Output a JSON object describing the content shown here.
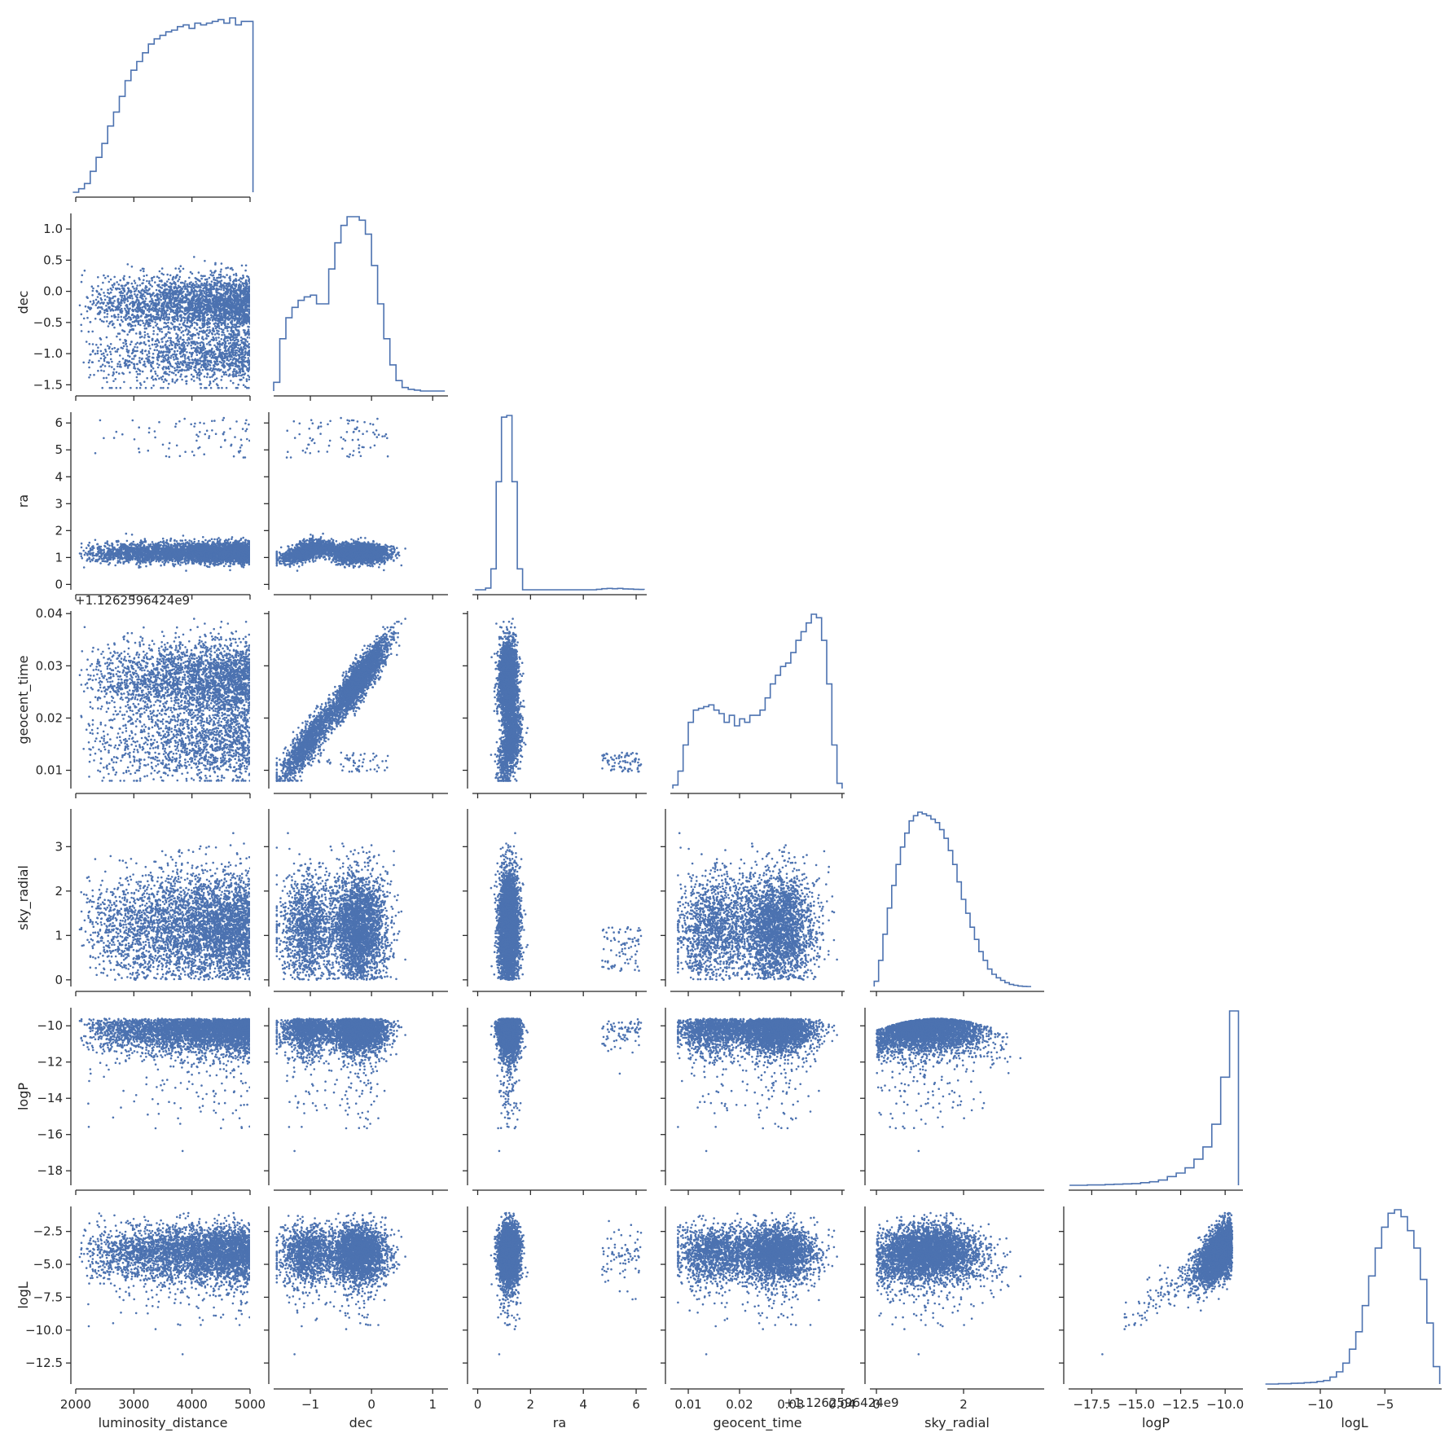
{
  "chart_data": {
    "type": "corner_pairplot",
    "variables": [
      {
        "name": "luminosity_distance",
        "label": "luminosity_distance",
        "range": [
          2000,
          5000
        ],
        "ticks": [
          2000,
          3000,
          4000,
          5000
        ],
        "tick_labels": [
          "2000",
          "3000",
          "4000",
          "5000"
        ]
      },
      {
        "name": "dec",
        "label": "dec",
        "range": [
          -1.6,
          1.25
        ],
        "ticks": [
          -1.5,
          -1.0,
          -0.5,
          0.0,
          0.5,
          1.0
        ],
        "tick_labels": [
          "−1.5",
          "−1.0",
          "−0.5",
          "0.0",
          "0.5",
          "1.0"
        ],
        "x_ticks": [
          -1,
          0,
          1
        ],
        "x_tick_labels": [
          "−1",
          "0",
          "1"
        ]
      },
      {
        "name": "ra",
        "label": "ra",
        "range": [
          -0.2,
          6.4
        ],
        "ticks": [
          0,
          1,
          2,
          3,
          4,
          5,
          6
        ],
        "tick_labels": [
          "0",
          "1",
          "2",
          "3",
          "4",
          "5",
          "6"
        ],
        "x_ticks": [
          0,
          2,
          4,
          6
        ],
        "x_tick_labels": [
          "0",
          "2",
          "4",
          "6"
        ]
      },
      {
        "name": "geocent_time",
        "label": "geocent_time",
        "range": [
          0.0065,
          0.0405
        ],
        "ticks": [
          0.01,
          0.02,
          0.03,
          0.04
        ],
        "tick_labels": [
          "0.01",
          "0.02",
          "0.03",
          "0.04"
        ],
        "offset": "+1.126259642e9",
        "offset_text": "+1.1262596424e9"
      },
      {
        "name": "sky_radial",
        "label": "sky_radial",
        "range": [
          -0.15,
          3.85
        ],
        "ticks": [
          0,
          1,
          2,
          3
        ],
        "tick_labels": [
          "0",
          "1",
          "2",
          "3"
        ],
        "x_ticks": [
          0,
          2
        ],
        "x_tick_labels": [
          "0",
          "2"
        ]
      },
      {
        "name": "logP",
        "label": "logP",
        "range": [
          -18.8,
          -9.0
        ],
        "ticks": [
          -18,
          -16,
          -14,
          -12,
          -10
        ],
        "tick_labels": [
          "−18",
          "−16",
          "−14",
          "−12",
          "−10"
        ],
        "x_ticks": [
          -17.5,
          -15.0,
          -12.5,
          -10.0
        ],
        "x_tick_labels": [
          "−17.5",
          "−15.0",
          "−12.5",
          "−10.0"
        ]
      },
      {
        "name": "logL",
        "label": "logL",
        "range": [
          -14.1,
          -0.6
        ],
        "ticks": [
          -12.5,
          -10.0,
          -7.5,
          -5.0,
          -2.5
        ],
        "tick_labels": [
          "−12.5",
          "−10.0",
          "−7.5",
          "−5.0",
          "−2.5"
        ],
        "x_ticks": [
          -10,
          -5
        ],
        "x_tick_labels": [
          "−10",
          "−5"
        ]
      }
    ],
    "diagonal": "step-histogram",
    "off_diagonal": "scatter",
    "color": "#4c72b0",
    "histograms": {
      "luminosity_distance": {
        "x": [
          2000,
          2100,
          2200,
          2300,
          2400,
          2500,
          2600,
          2700,
          2800,
          2900,
          3000,
          3100,
          3200,
          3300,
          3400,
          3500,
          3600,
          3700,
          3800,
          3900,
          4000,
          4100,
          4200,
          4300,
          4400,
          4500,
          4600,
          4700,
          4800,
          4900,
          5000
        ],
        "density": [
          0.0,
          0.02,
          0.05,
          0.12,
          0.2,
          0.28,
          0.38,
          0.46,
          0.55,
          0.64,
          0.7,
          0.75,
          0.8,
          0.85,
          0.88,
          0.9,
          0.92,
          0.93,
          0.95,
          0.96,
          0.94,
          0.97,
          0.96,
          0.97,
          0.98,
          0.99,
          0.97,
          1.0,
          0.96,
          0.98,
          0.98
        ]
      },
      "dec": {
        "x": [
          -1.55,
          -1.45,
          -1.35,
          -1.25,
          -1.15,
          -1.05,
          -0.95,
          -0.85,
          -0.75,
          -0.65,
          -0.55,
          -0.45,
          -0.35,
          -0.25,
          -0.15,
          -0.05,
          0.05,
          0.15,
          0.25,
          0.35,
          0.45,
          0.55,
          0.65,
          0.75,
          0.85,
          0.95,
          1.05,
          1.15
        ],
        "density": [
          0.05,
          0.3,
          0.42,
          0.48,
          0.52,
          0.54,
          0.55,
          0.5,
          0.5,
          0.7,
          0.85,
          0.95,
          1.0,
          1.0,
          0.98,
          0.9,
          0.72,
          0.5,
          0.3,
          0.15,
          0.06,
          0.02,
          0.01,
          0.005,
          0.0,
          0.0,
          0.0,
          0.0
        ]
      },
      "ra": {
        "x": [
          0.0,
          0.2,
          0.4,
          0.6,
          0.8,
          1.0,
          1.2,
          1.4,
          1.6,
          1.8,
          2.0,
          2.2,
          2.4,
          2.6,
          2.8,
          3.0,
          3.2,
          3.4,
          3.6,
          3.8,
          4.0,
          4.2,
          4.4,
          4.6,
          4.8,
          5.0,
          5.2,
          5.4,
          5.6,
          5.8,
          6.0,
          6.2
        ],
        "density": [
          0.0,
          0.0,
          0.01,
          0.12,
          0.62,
          0.99,
          1.0,
          0.62,
          0.12,
          0.0,
          0.0,
          0.0,
          0.0,
          0.0,
          0.0,
          0.0,
          0.0,
          0.0,
          0.0,
          0.0,
          0.0,
          0.0,
          0.0,
          0.003,
          0.006,
          0.008,
          0.006,
          0.008,
          0.005,
          0.004,
          0.003,
          0.002
        ]
      },
      "geocent_time": {
        "x": [
          0.0075,
          0.0085,
          0.0095,
          0.0105,
          0.0115,
          0.0125,
          0.0135,
          0.0145,
          0.0155,
          0.0165,
          0.0175,
          0.0185,
          0.0195,
          0.0205,
          0.0215,
          0.0225,
          0.0235,
          0.0245,
          0.0255,
          0.0265,
          0.0275,
          0.0285,
          0.0295,
          0.0305,
          0.0315,
          0.0325,
          0.0335,
          0.0345,
          0.0355,
          0.0365,
          0.0375,
          0.0385,
          0.0395
        ],
        "density": [
          0.02,
          0.1,
          0.25,
          0.38,
          0.45,
          0.46,
          0.47,
          0.48,
          0.45,
          0.43,
          0.38,
          0.42,
          0.36,
          0.4,
          0.38,
          0.42,
          0.42,
          0.45,
          0.52,
          0.6,
          0.65,
          0.7,
          0.72,
          0.78,
          0.85,
          0.9,
          0.95,
          1.0,
          0.98,
          0.85,
          0.6,
          0.25,
          0.03
        ]
      },
      "sky_radial": {
        "x": [
          0.0,
          0.1,
          0.2,
          0.3,
          0.4,
          0.5,
          0.6,
          0.7,
          0.8,
          0.9,
          1.0,
          1.1,
          1.2,
          1.3,
          1.4,
          1.5,
          1.6,
          1.7,
          1.8,
          1.9,
          2.0,
          2.1,
          2.2,
          2.3,
          2.4,
          2.5,
          2.6,
          2.7,
          2.8,
          2.9,
          3.0,
          3.1,
          3.2,
          3.3,
          3.4,
          3.5
        ],
        "density": [
          0.03,
          0.15,
          0.3,
          0.45,
          0.58,
          0.7,
          0.8,
          0.88,
          0.95,
          0.98,
          1.0,
          0.99,
          0.98,
          0.96,
          0.94,
          0.9,
          0.85,
          0.78,
          0.7,
          0.6,
          0.5,
          0.42,
          0.34,
          0.27,
          0.2,
          0.15,
          0.1,
          0.07,
          0.05,
          0.035,
          0.022,
          0.012,
          0.007,
          0.003,
          0.001,
          0.0
        ]
      },
      "logP": {
        "x": [
          -18.5,
          -18.0,
          -17.5,
          -17.0,
          -16.5,
          -16.0,
          -15.5,
          -15.0,
          -14.5,
          -14.0,
          -13.5,
          -13.0,
          -12.5,
          -12.0,
          -11.5,
          -11.0,
          -10.5,
          -10.0,
          -9.5
        ],
        "density": [
          0.0,
          0.0,
          0.002,
          0.002,
          0.004,
          0.006,
          0.008,
          0.01,
          0.015,
          0.02,
          0.03,
          0.05,
          0.07,
          0.1,
          0.15,
          0.22,
          0.35,
          0.62,
          1.0
        ]
      },
      "logL": {
        "x": [
          -14.0,
          -13.5,
          -13.0,
          -12.5,
          -12.0,
          -11.5,
          -11.0,
          -10.5,
          -10.0,
          -9.5,
          -9.0,
          -8.5,
          -8.0,
          -7.5,
          -7.0,
          -6.5,
          -6.0,
          -5.5,
          -5.0,
          -4.5,
          -4.0,
          -3.5,
          -3.0,
          -2.5,
          -2.0,
          -1.5,
          -1.0
        ],
        "density": [
          0.0,
          0.0,
          0.002,
          0.002,
          0.004,
          0.005,
          0.008,
          0.01,
          0.015,
          0.02,
          0.04,
          0.07,
          0.12,
          0.2,
          0.3,
          0.45,
          0.62,
          0.78,
          0.9,
          0.98,
          1.0,
          0.96,
          0.88,
          0.78,
          0.6,
          0.35,
          0.1
        ]
      }
    },
    "title": "",
    "grid": false,
    "legend": "none"
  }
}
